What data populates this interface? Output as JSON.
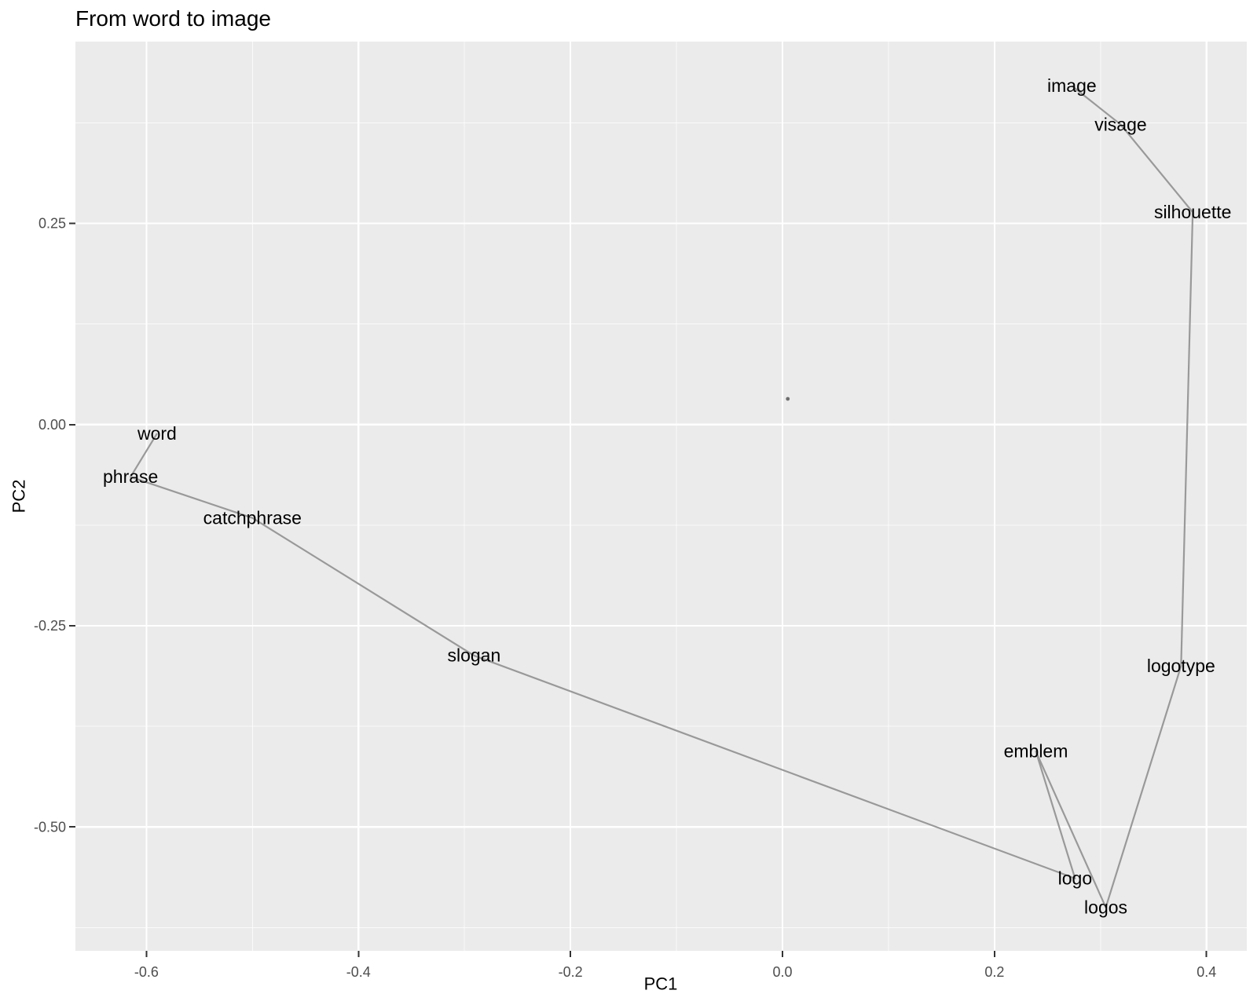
{
  "chart_data": {
    "type": "scatter",
    "title": "From word to image",
    "xlabel": "PC1",
    "ylabel": "PC2",
    "xlim": [
      -0.667,
      0.438
    ],
    "ylim": [
      -0.654,
      0.476
    ],
    "grid": {
      "major": true,
      "minor": true,
      "panel_background": true
    },
    "legend_position": "none",
    "x_axis": {
      "tick_values": [
        -0.6,
        -0.4,
        -0.2,
        0.0,
        0.2,
        0.4
      ],
      "tick_labels": [
        "-0.6",
        "-0.4",
        "-0.2",
        "0.0",
        "0.2",
        "0.4"
      ],
      "minor_tick_values": [
        -0.5,
        -0.3,
        -0.1,
        0.1,
        0.3
      ]
    },
    "y_axis": {
      "tick_values": [
        0.25,
        0.0,
        -0.25,
        -0.5
      ],
      "tick_labels": [
        "0.25",
        "0.00",
        "-0.25",
        "-0.50"
      ],
      "minor_tick_values": [
        0.375,
        0.125,
        -0.125,
        -0.375,
        -0.625
      ]
    },
    "series": [
      {
        "name": "word-to-image-path",
        "mark": "path-with-text-labels",
        "points": [
          {
            "label": "word",
            "x": -0.59,
            "y": -0.011
          },
          {
            "label": "phrase",
            "x": -0.615,
            "y": -0.065
          },
          {
            "label": "catchphrase",
            "x": -0.5,
            "y": -0.116
          },
          {
            "label": "slogan",
            "x": -0.291,
            "y": -0.287
          },
          {
            "label": "logo",
            "x": 0.276,
            "y": -0.564
          },
          {
            "label": "emblem",
            "x": 0.239,
            "y": -0.406
          },
          {
            "label": "logos",
            "x": 0.305,
            "y": -0.6
          },
          {
            "label": "logotype",
            "x": 0.376,
            "y": -0.3
          },
          {
            "label": "silhouette",
            "x": 0.387,
            "y": 0.264
          },
          {
            "label": "visage",
            "x": 0.319,
            "y": 0.373
          },
          {
            "label": "image",
            "x": 0.273,
            "y": 0.421
          }
        ]
      }
    ],
    "unlabeled_points": [
      {
        "x": 0.005,
        "y": 0.032
      }
    ],
    "colors": {
      "background": "#FFFFFF",
      "panel_background": "#EBEBEB",
      "grid_major": "#FFFFFF",
      "grid_minor": "#FFFFFF",
      "path_line": "#999999",
      "point": "#6E6E6E",
      "point_label_text": "#000000",
      "tick_text": "#4D4D4D",
      "tick_mark": "#333333",
      "axis_title_text": "#000000",
      "plot_title_text": "#000000"
    }
  }
}
